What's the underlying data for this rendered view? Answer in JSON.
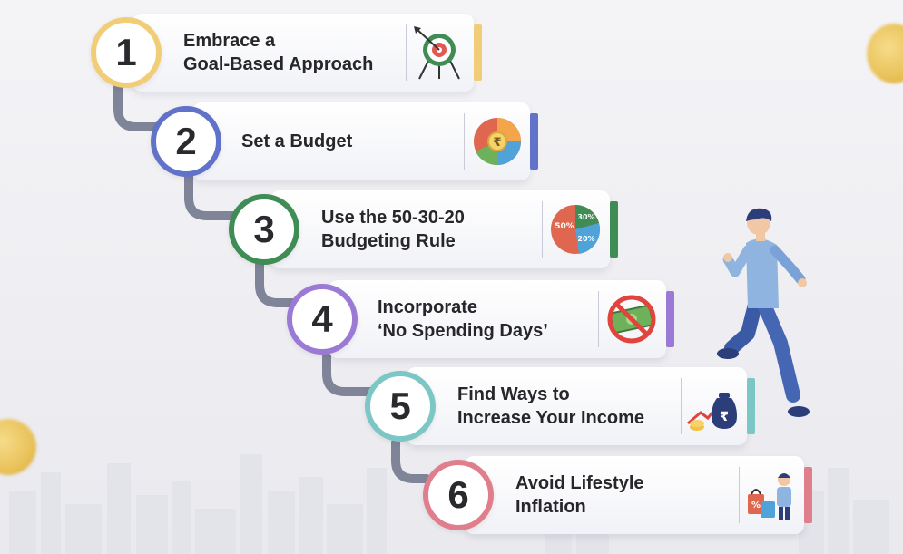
{
  "steps": [
    {
      "number": "1",
      "line1": "Embrace a",
      "line2": "Goal-Based Approach",
      "color": "#f2cd77",
      "icon": "target-icon"
    },
    {
      "number": "2",
      "line1": "Set a Budget",
      "line2": "",
      "color": "#6173c9",
      "icon": "rupee-pie-icon"
    },
    {
      "number": "3",
      "line1": "Use the 50-30-20",
      "line2": "Budgeting Rule",
      "color": "#3f8c55",
      "icon": "percent-pie-icon"
    },
    {
      "number": "4",
      "line1": "Incorporate",
      "line2": "‘No Spending Days’",
      "color": "#9b7ad6",
      "icon": "no-money-icon"
    },
    {
      "number": "5",
      "line1": "Find Ways to",
      "line2": "Increase Your Income",
      "color": "#7cc7c5",
      "icon": "money-bag-growth-icon"
    },
    {
      "number": "6",
      "line1": "Avoid Lifestyle",
      "line2": "Inflation",
      "color": "#e07e8c",
      "icon": "shopping-person-icon"
    }
  ],
  "pie_labels": {
    "a": "50%",
    "b": "30%",
    "c": "20%"
  },
  "colors": {
    "connector": "#7f8499",
    "text": "#26262b"
  }
}
